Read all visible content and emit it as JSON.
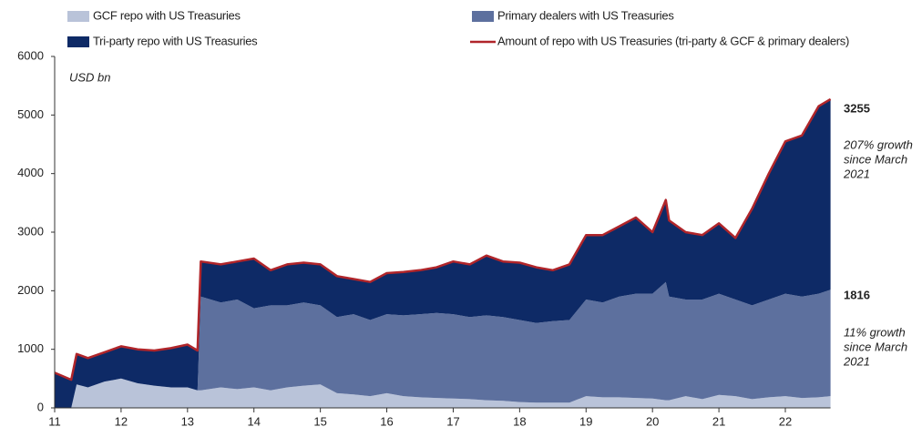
{
  "chart_data": {
    "type": "stacked_area_line",
    "y_label": "USD bn",
    "x": [
      11,
      11.25,
      11.33,
      11.5,
      11.75,
      12,
      12.25,
      12.5,
      12.75,
      13,
      13.15,
      13.2,
      13.5,
      13.75,
      14,
      14.25,
      14.5,
      14.75,
      15,
      15.25,
      15.5,
      15.75,
      16,
      16.25,
      16.5,
      16.75,
      17,
      17.25,
      17.5,
      17.75,
      18,
      18.25,
      18.5,
      18.75,
      19,
      19.25,
      19.5,
      19.75,
      20,
      20.2,
      20.25,
      20.5,
      20.75,
      21,
      21.25,
      21.5,
      21.75,
      22,
      22.25,
      22.5,
      22.68
    ],
    "xlim": [
      11,
      22.68
    ],
    "xticks": [
      11,
      12,
      13,
      14,
      15,
      16,
      17,
      18,
      19,
      20,
      21,
      22
    ],
    "ylim": [
      0,
      6000
    ],
    "yticks": [
      0,
      1000,
      2000,
      3000,
      4000,
      5000,
      6000
    ],
    "series": [
      {
        "name": "GCF repo with US Treasuries",
        "color": "#b9c3d9",
        "kind": "area",
        "values": [
          0,
          0,
          400,
          350,
          450,
          500,
          420,
          380,
          350,
          350,
          300,
          300,
          350,
          320,
          350,
          300,
          350,
          380,
          400,
          250,
          230,
          200,
          250,
          200,
          180,
          170,
          160,
          150,
          130,
          120,
          100,
          90,
          90,
          90,
          200,
          180,
          180,
          170,
          160,
          130,
          130,
          200,
          150,
          220,
          200,
          150,
          180,
          200,
          170,
          180,
          200
        ]
      },
      {
        "name": "Primary dealers with US Treasuries",
        "color": "#5d709e",
        "kind": "area",
        "values": [
          0,
          0,
          0,
          0,
          0,
          0,
          0,
          0,
          0,
          0,
          0,
          1600,
          1450,
          1530,
          1350,
          1450,
          1400,
          1420,
          1350,
          1300,
          1370,
          1300,
          1350,
          1380,
          1420,
          1450,
          1440,
          1400,
          1450,
          1430,
          1400,
          1360,
          1390,
          1410,
          1650,
          1620,
          1720,
          1780,
          1790,
          2020,
          1770,
          1650,
          1700,
          1730,
          1650,
          1600,
          1670,
          1750,
          1730,
          1770,
          1816
        ]
      },
      {
        "name": "Tri-party repo with US Treasuries",
        "color": "#0e2a66",
        "kind": "area",
        "values": [
          600,
          480,
          520,
          500,
          500,
          550,
          580,
          600,
          670,
          730,
          680,
          600,
          650,
          650,
          850,
          600,
          700,
          680,
          700,
          700,
          600,
          650,
          700,
          740,
          750,
          780,
          900,
          900,
          1020,
          950,
          980,
          950,
          870,
          950,
          1100,
          1150,
          1200,
          1300,
          1050,
          1400,
          1300,
          1150,
          1100,
          1200,
          1050,
          1650,
          2150,
          2600,
          2750,
          3200,
          3255
        ]
      },
      {
        "name": "Amount of repo with US Treasuries (tri-party & GCF & primary dealers)",
        "color": "#b0252a",
        "kind": "line",
        "values": [
          600,
          480,
          920,
          850,
          950,
          1050,
          1000,
          980,
          1020,
          1080,
          980,
          2500,
          2450,
          2500,
          2550,
          2350,
          2450,
          2480,
          2450,
          2250,
          2200,
          2150,
          2300,
          2320,
          2350,
          2400,
          2500,
          2450,
          2600,
          2500,
          2480,
          2400,
          2350,
          2450,
          2950,
          2950,
          3100,
          3250,
          3000,
          3550,
          3200,
          3000,
          2950,
          3150,
          2900,
          3400,
          4000,
          4550,
          4650,
          5150,
          5271
        ]
      }
    ],
    "annotations": [
      {
        "lines": [
          "207% growth",
          "since March",
          "2021"
        ]
      },
      {
        "lines": [
          "11% growth",
          "since March",
          "2021"
        ]
      }
    ]
  }
}
